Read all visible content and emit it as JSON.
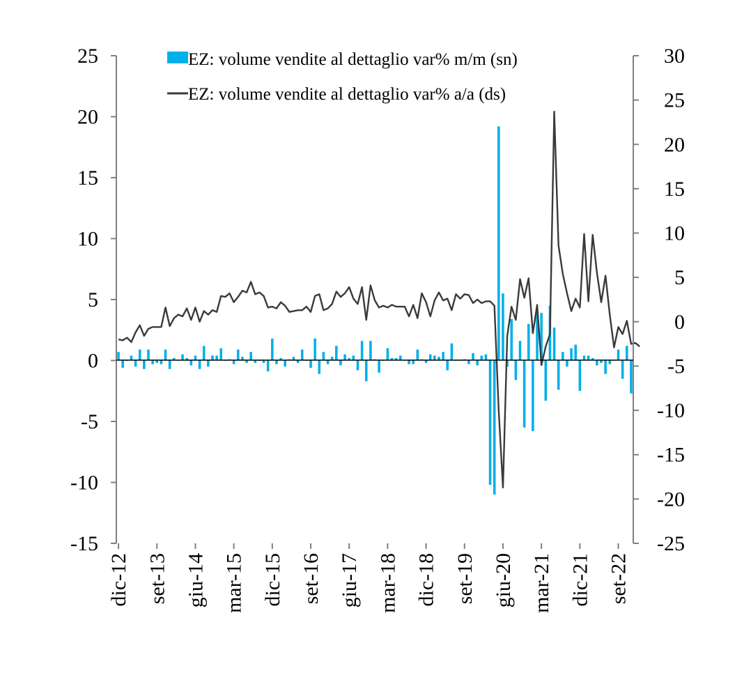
{
  "chart_data": {
    "type": "bar+line",
    "legend": [
      {
        "label": "EZ: volume vendite al dettaglio var% m/m (sn)",
        "type": "bar",
        "color": "#00b0e8"
      },
      {
        "label": "EZ: volume vendite al dettaglio var% a/a (ds)",
        "type": "line",
        "color": "#3a3a3a"
      }
    ],
    "legend_position": "top",
    "x_tick_labels": [
      "dic-12",
      "set-13",
      "giu-14",
      "mar-15",
      "dic-15",
      "set-16",
      "giu-17",
      "mar-18",
      "dic-18",
      "set-19",
      "giu-20",
      "mar-21",
      "dic-21",
      "set-22"
    ],
    "x_tick_step_months": 9,
    "y_left": {
      "range": [
        -15,
        25
      ],
      "ticks": [
        "25",
        "20",
        "15",
        "10",
        "5",
        "0",
        "-5",
        "-10",
        "-15"
      ]
    },
    "y_right": {
      "range": [
        -25,
        30
      ],
      "ticks": [
        "30",
        "25",
        "20",
        "15",
        "10",
        "5",
        "0",
        "-5",
        "-10",
        "-15",
        "-20",
        "-25"
      ]
    },
    "grid": false,
    "series": [
      {
        "name": "EZ: volume vendite al dettaglio var% m/m (sn)",
        "axis": "left",
        "values": [
          0.7,
          -0.6,
          0,
          0.4,
          -0.5,
          0.9,
          -0.7,
          0.9,
          -0.3,
          -0.2,
          -0.3,
          0.9,
          -0.7,
          0.2,
          0,
          0.5,
          0.2,
          -0.4,
          0.4,
          -0.7,
          1.2,
          -0.5,
          0.4,
          0.4,
          1,
          0,
          0.1,
          -0.3,
          0.9,
          0.3,
          -0.2,
          0.7,
          -0.2,
          0,
          -0.2,
          -0.9,
          1.8,
          -0.3,
          0.2,
          -0.5,
          0.1,
          0.3,
          -0.2,
          0.9,
          0,
          -0.6,
          1.8,
          -1.1,
          0.7,
          -0.3,
          0.3,
          1.2,
          -0.4,
          0.5,
          0.2,
          0.4,
          -0.8,
          1.6,
          -1.7,
          1.6,
          0.1,
          -1,
          0,
          1,
          0.2,
          0.2,
          0.4,
          0,
          -0.3,
          -0.3,
          0.9,
          0.1,
          -0.2,
          0.5,
          0.4,
          0.3,
          0.7,
          -0.8,
          1.4,
          0,
          0,
          0.1,
          -0.3,
          0.6,
          -0.4,
          0.4,
          0.5,
          -10.2,
          -11,
          19.2,
          5.5,
          -0.5,
          3.4,
          -1.6,
          1.6,
          -5.5,
          3,
          -5.8,
          3.9,
          3.9,
          -3.3,
          4.5,
          2.7,
          -2.4,
          0.7,
          -0.5,
          1,
          1.3,
          -2.5,
          0.4,
          0.4,
          0.2,
          -0.4,
          -0.2,
          -1.1,
          -0.3,
          0,
          0.9,
          -1.5,
          1.2,
          -2.7
        ]
      },
      {
        "name": "EZ: volume vendite al dettaglio var% a/a (ds)",
        "axis": "right",
        "values": [
          -2,
          -2.1,
          -1.8,
          -2.3,
          -1.2,
          -0.4,
          -1.6,
          -0.8,
          -0.6,
          -0.6,
          -0.6,
          1.6,
          -0.5,
          0.4,
          0.8,
          0.6,
          1.5,
          0.2,
          1.6,
          0,
          1.2,
          0.8,
          1.3,
          1.1,
          2.9,
          2.8,
          3.2,
          2.2,
          2.8,
          3.5,
          3.3,
          4.5,
          3.1,
          3.3,
          2.9,
          1.6,
          1.7,
          1.5,
          2.2,
          1.8,
          1.1,
          1.2,
          1.3,
          1.3,
          1.7,
          1.1,
          2.9,
          3.1,
          1.3,
          1.5,
          2,
          3.4,
          2.8,
          3.2,
          3.9,
          2.6,
          2,
          3.9,
          0.2,
          4.1,
          2.4,
          1.6,
          1.8,
          1.6,
          1.9,
          1.7,
          1.7,
          1.7,
          0.6,
          1.9,
          0.4,
          3.2,
          2.2,
          0.6,
          2.4,
          3.3,
          2.4,
          2.6,
          1.3,
          3.1,
          2.6,
          3.1,
          3,
          2.1,
          2.5,
          2.1,
          2.3,
          2.3,
          1.8,
          -10,
          -18.7,
          -1.6,
          1.7,
          0.2,
          4.8,
          2.7,
          4.9,
          -1.3,
          1.9,
          -4.9,
          -2.8,
          -1.4,
          23.7,
          8.6,
          5.4,
          3.2,
          1.2,
          2.6,
          1.6,
          9.9,
          2.3,
          9.8,
          5.5,
          2.2,
          5.2,
          0.8,
          -2.9,
          -0.6,
          -1.4,
          0.1,
          -2.5,
          -2.4,
          -2.8
        ]
      }
    ]
  }
}
